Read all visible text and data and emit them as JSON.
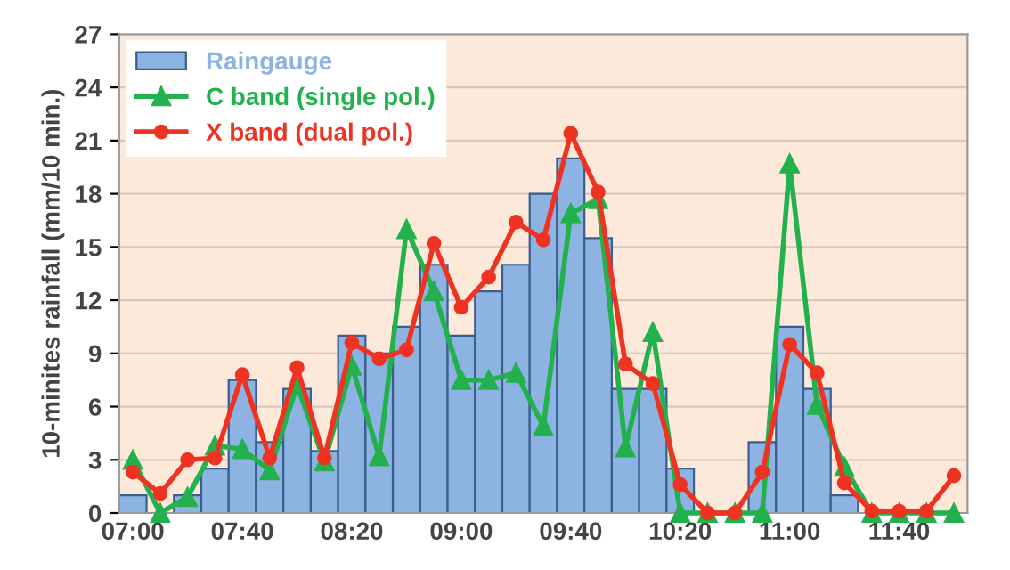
{
  "chart_data": {
    "type": "bar",
    "ylabel": "10-minites rainfall (mm/10 min.)",
    "categories": [
      "07:00",
      null,
      null,
      null,
      "07:40",
      null,
      null,
      null,
      "08:20",
      null,
      null,
      null,
      "09:00",
      null,
      null,
      null,
      "09:40",
      null,
      null,
      null,
      "10:20",
      null,
      null,
      null,
      "11:00",
      null,
      null,
      null,
      "11:40",
      null,
      null
    ],
    "series": [
      {
        "name": "Raingauge",
        "color": "#8db3e2",
        "values": [
          1.0,
          0,
          1.0,
          2.5,
          7.5,
          4.0,
          7.0,
          3.5,
          10.0,
          9.0,
          10.5,
          14.0,
          10.0,
          12.5,
          14.0,
          18.0,
          20.0,
          15.5,
          7.0,
          7.0,
          2.5,
          0,
          0,
          4.0,
          10.5,
          7.0,
          1.0,
          0,
          0,
          0,
          0
        ]
      },
      {
        "name": "C band (single pol.)",
        "type": "line",
        "marker": "triangle",
        "color": "#22b14c",
        "values": [
          3.0,
          0,
          0.9,
          3.8,
          3.6,
          2.4,
          7.2,
          2.9,
          8.3,
          3.2,
          16.0,
          12.5,
          7.5,
          7.5,
          7.9,
          4.9,
          16.9,
          17.7,
          3.7,
          10.2,
          0,
          0,
          0,
          0,
          19.7,
          6.1,
          2.6,
          0,
          0,
          0,
          0
        ]
      },
      {
        "name": "X band (dual pol.)",
        "type": "line",
        "marker": "circle",
        "color": "#ee3322",
        "values": [
          2.3,
          1.1,
          3.0,
          3.1,
          7.8,
          3.1,
          8.2,
          3.1,
          9.6,
          8.7,
          9.2,
          15.2,
          11.6,
          13.3,
          16.4,
          15.4,
          21.4,
          18.1,
          8.4,
          7.3,
          1.6,
          0,
          0,
          2.3,
          9.5,
          7.9,
          1.7,
          0.1,
          0.1,
          0.1,
          2.1
        ]
      }
    ],
    "ylim": [
      0,
      27
    ],
    "yticks": [
      0,
      3,
      6,
      9,
      12,
      15,
      18,
      21,
      24,
      27
    ],
    "grid": "y",
    "legend": "top left",
    "line_style": "solid"
  }
}
